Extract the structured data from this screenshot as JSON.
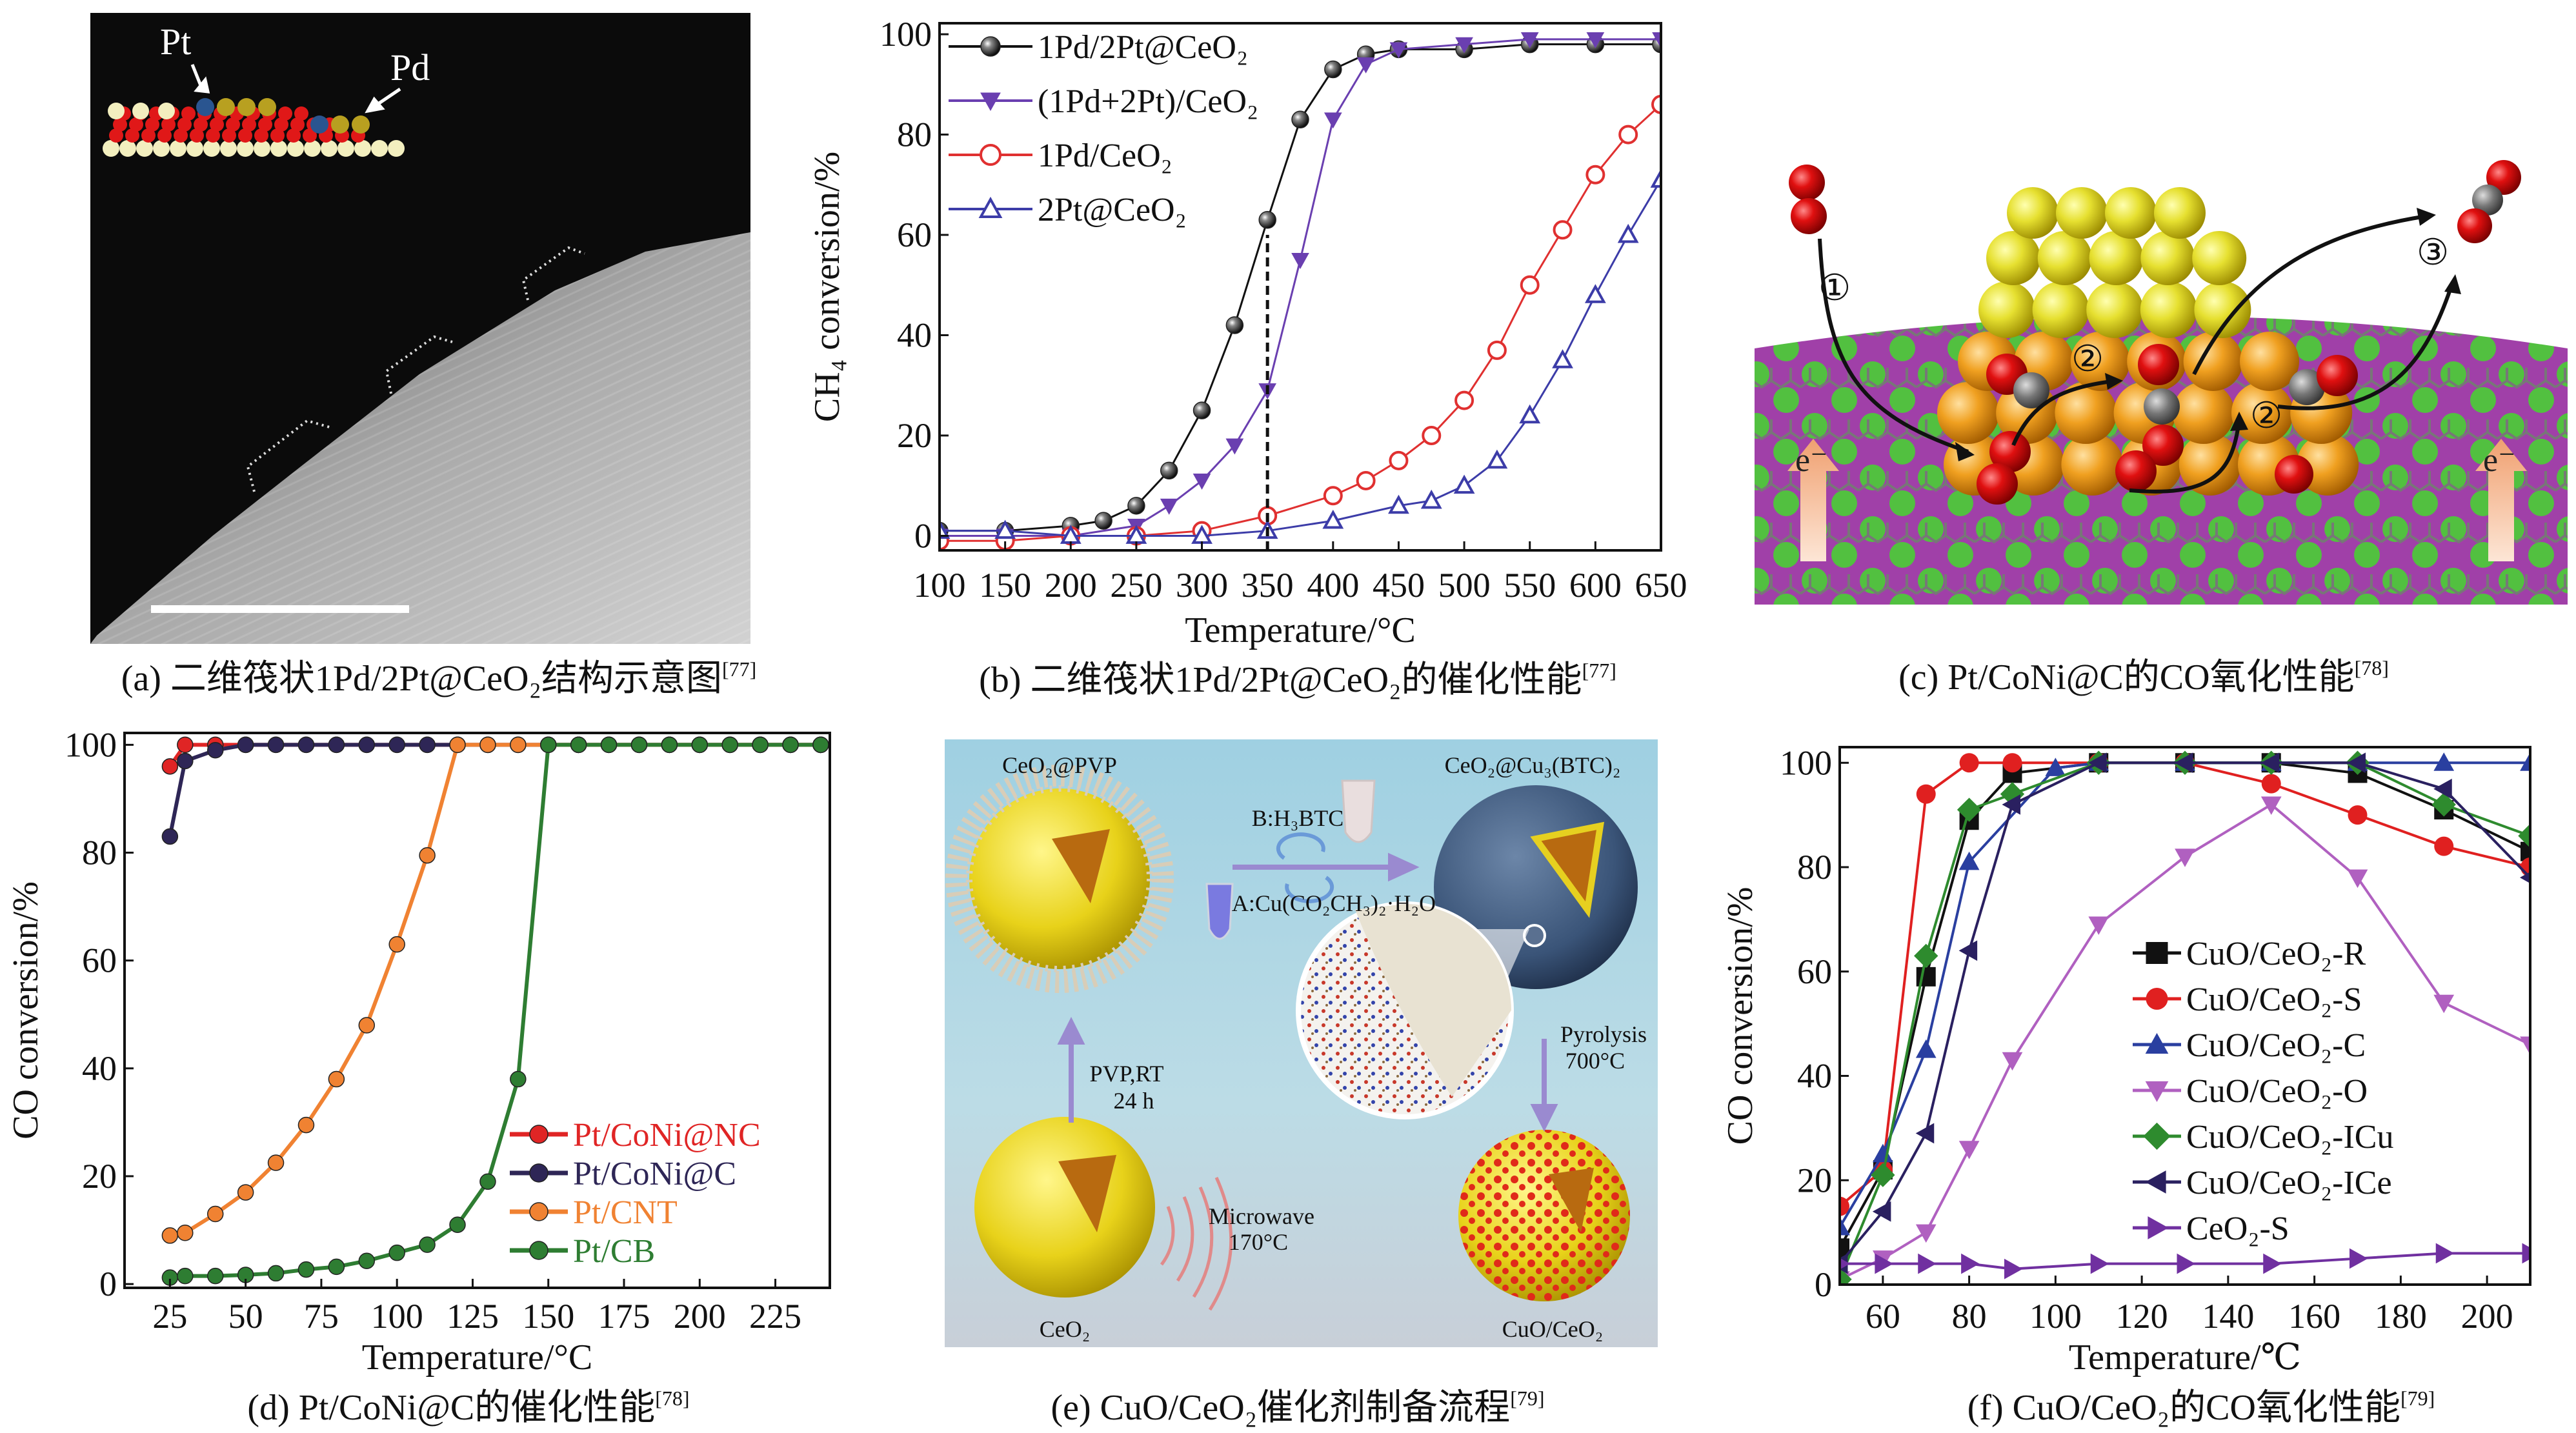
{
  "panels": {
    "a": {
      "caption": "(a) 二维筏状1Pd/2Pt@CeO₂结构示意图",
      "ref": "[77]",
      "labels": {
        "pt": "Pt",
        "pd": "Pd"
      }
    },
    "b": {
      "caption": "(b) 二维筏状1Pd/2Pt@CeO₂的催化性能",
      "ref": "[77]"
    },
    "c": {
      "caption": "(c) Pt/CoNi@C的CO氧化性能",
      "ref": "[78]",
      "labels": {
        "step1": "①",
        "step2a": "②",
        "step2b": "②",
        "step3": "③",
        "e_left": "e⁻",
        "e_right": "e⁻"
      }
    },
    "d": {
      "caption": "(d) Pt/CoNi@C的催化性能",
      "ref": "[78]"
    },
    "e": {
      "caption": "(e) CuO/CeO₂催化剂制备流程",
      "ref": "[79]",
      "labels": {
        "ceo2_pvp": "CeO₂@PVP",
        "ceo2_cubtc": "CeO₂@Cu₃(BTC)₂",
        "reagent_b": "B:H₃BTC",
        "reagent_a": "A:Cu(CO₂CH₃)₂·H₂O",
        "pvp_rt": "PVP,RT",
        "time_24h": "24 h",
        "microwave": "Microwave",
        "temp_170": "170°C",
        "pyrolysis": "Pyrolysis",
        "temp_700": "700°C",
        "ceo2": "CeO₂",
        "cuo_ceo2": "CuO/CeO₂"
      }
    },
    "f": {
      "caption": "(f) CuO/CeO₂的CO氧化性能",
      "ref": "[79]"
    }
  },
  "chart_data": [
    {
      "id": "b",
      "type": "line",
      "title": "",
      "xlabel": "Temperature/°C",
      "ylabel": "CH₄ conversion/%",
      "xlim": [
        100,
        650
      ],
      "ylim": [
        -2.9,
        102.2
      ],
      "xticks": [
        100,
        150,
        200,
        250,
        300,
        350,
        400,
        450,
        500,
        550,
        600,
        650
      ],
      "yticks": [
        0,
        20,
        40,
        60,
        80,
        100
      ],
      "grid": false,
      "legend_position": "top-left",
      "annotation": "dashed vertical line at 350 °C",
      "series": [
        {
          "name": "1Pd/2Pt@CeO₂",
          "color": "#111111",
          "marker": "ball",
          "x": [
            100,
            150,
            200,
            225,
            250,
            275,
            300,
            325,
            350,
            375,
            400,
            425,
            450,
            500,
            550,
            600,
            650
          ],
          "y": [
            1,
            1,
            2,
            3,
            6,
            13,
            25,
            42,
            63,
            83,
            93,
            96,
            97,
            97,
            98,
            98,
            98
          ]
        },
        {
          "name": "(1Pd+2Pt)/CeO₂",
          "color": "#6a3fb0",
          "marker": "tri-down",
          "x": [
            100,
            150,
            200,
            250,
            275,
            300,
            325,
            350,
            375,
            400,
            425,
            450,
            500,
            550,
            600,
            650
          ],
          "y": [
            0,
            0,
            0,
            2,
            6,
            11,
            18,
            29,
            55,
            83,
            94,
            97,
            98,
            99,
            99,
            99
          ]
        },
        {
          "name": "1Pd/CeO₂",
          "color": "#e03030",
          "marker": "circle-open",
          "x": [
            100,
            150,
            200,
            250,
            300,
            350,
            400,
            425,
            450,
            475,
            500,
            525,
            550,
            575,
            600,
            625,
            650
          ],
          "y": [
            -1,
            -1,
            0,
            0,
            1,
            4,
            8,
            11,
            15,
            20,
            27,
            37,
            50,
            61,
            72,
            80,
            86
          ]
        },
        {
          "name": "2Pt@CeO₂",
          "color": "#3c3ca8",
          "marker": "tri-up-open",
          "x": [
            100,
            150,
            200,
            250,
            300,
            350,
            400,
            450,
            475,
            500,
            525,
            550,
            575,
            600,
            625,
            650
          ],
          "y": [
            1,
            1,
            0,
            0,
            0,
            1,
            3,
            6,
            7,
            10,
            15,
            24,
            35,
            48,
            60,
            71
          ]
        }
      ]
    },
    {
      "id": "d",
      "type": "line",
      "title": "",
      "xlabel": "Temperature/°C",
      "ylabel": "CO conversion/%",
      "xlim": [
        10,
        243
      ],
      "ylim": [
        -0.7,
        102.2
      ],
      "xticks": [
        25,
        50,
        75,
        100,
        125,
        150,
        175,
        200,
        225
      ],
      "yticks": [
        0,
        20,
        40,
        60,
        80,
        100
      ],
      "grid": false,
      "legend_position": "bottom-right",
      "series": [
        {
          "name": "Pt/CoNi@NC",
          "color": "#e02525",
          "marker": "ball",
          "x": [
            25,
            30,
            40,
            50,
            60,
            70,
            80,
            90,
            100,
            110,
            120,
            130,
            140,
            150,
            160,
            170,
            180,
            190,
            200,
            210,
            220,
            230,
            240
          ],
          "y": [
            96,
            100,
            100,
            100,
            100,
            100,
            100,
            100,
            100,
            100,
            100,
            100,
            100,
            100,
            100,
            100,
            100,
            100,
            100,
            100,
            100,
            100,
            100
          ]
        },
        {
          "name": "Pt/CoNi@C",
          "color": "#2e2656",
          "marker": "ball",
          "x": [
            25,
            30,
            40,
            50,
            60,
            70,
            80,
            90,
            100,
            110,
            120,
            130,
            140,
            150,
            160,
            170,
            180,
            190,
            200,
            210,
            220,
            230,
            240
          ],
          "y": [
            83,
            97,
            99,
            100,
            100,
            100,
            100,
            100,
            100,
            100,
            100,
            100,
            100,
            100,
            100,
            100,
            100,
            100,
            100,
            100,
            100,
            100,
            100
          ]
        },
        {
          "name": "Pt/CNT",
          "color": "#f08232",
          "marker": "ball",
          "x": [
            25,
            30,
            40,
            50,
            60,
            70,
            80,
            90,
            100,
            110,
            120,
            130,
            140,
            150,
            160,
            170,
            180,
            190,
            200,
            210,
            220,
            230,
            240
          ],
          "y": [
            9,
            9.5,
            13,
            17,
            22.5,
            29.5,
            38,
            48,
            63,
            79.5,
            100,
            100,
            100,
            100,
            100,
            100,
            100,
            100,
            100,
            100,
            100,
            100,
            100
          ]
        },
        {
          "name": "Pt/CB",
          "color": "#2e7d32",
          "marker": "ball",
          "x": [
            25,
            30,
            40,
            50,
            60,
            70,
            80,
            90,
            100,
            110,
            120,
            130,
            140,
            150,
            160,
            170,
            180,
            190,
            200,
            210,
            220,
            230,
            240
          ],
          "y": [
            1.2,
            1.5,
            1.5,
            1.7,
            2,
            2.7,
            3.2,
            4.3,
            5.8,
            7.3,
            11,
            19,
            38,
            100,
            100,
            100,
            100,
            100,
            100,
            100,
            100,
            100,
            100
          ]
        }
      ]
    },
    {
      "id": "f",
      "type": "line",
      "title": "",
      "xlabel": "Temperature/℃",
      "ylabel": "CO conversion/%",
      "xlim": [
        50,
        210
      ],
      "ylim": [
        0,
        103
      ],
      "xticks": [
        60,
        80,
        100,
        120,
        140,
        160,
        180,
        200
      ],
      "yticks": [
        0,
        20,
        40,
        60,
        80,
        100
      ],
      "grid": false,
      "legend_position": "center-right",
      "series": [
        {
          "name": "CuO/CeO₂-R",
          "color": "#111111",
          "marker": "square",
          "x": [
            50,
            60,
            70,
            80,
            90,
            110,
            130,
            150,
            170,
            190,
            210
          ],
          "y": [
            7,
            22,
            59,
            89,
            98,
            100,
            100,
            100,
            98,
            91,
            83
          ]
        },
        {
          "name": "CuO/CeO₂-S",
          "color": "#e02020",
          "marker": "circle",
          "x": [
            50,
            60,
            70,
            80,
            90,
            110,
            130,
            150,
            170,
            190,
            210
          ],
          "y": [
            15,
            22,
            94,
            100,
            100,
            100,
            100,
            96,
            90,
            84,
            80
          ]
        },
        {
          "name": "CuO/CeO₂-C",
          "color": "#2a3fa0",
          "marker": "tri-up",
          "x": [
            50,
            60,
            70,
            80,
            100,
            110,
            130,
            150,
            170,
            190,
            210
          ],
          "y": [
            11,
            25,
            45,
            81,
            99,
            100,
            100,
            100,
            100,
            100,
            100
          ]
        },
        {
          "name": "CuO/CeO₂-O",
          "color": "#b060c0",
          "marker": "tri-down",
          "x": [
            50,
            60,
            70,
            80,
            90,
            110,
            130,
            150,
            170,
            190,
            210
          ],
          "y": [
            1,
            5,
            10,
            26,
            43,
            69,
            82,
            92,
            78,
            54,
            46
          ]
        },
        {
          "name": "CuO/CeO₂-ICu",
          "color": "#2e8b2e",
          "marker": "diamond",
          "x": [
            50,
            60,
            70,
            80,
            90,
            110,
            130,
            150,
            170,
            190,
            210
          ],
          "y": [
            1,
            21,
            63,
            91,
            94,
            100,
            100,
            100,
            100,
            92,
            86
          ]
        },
        {
          "name": "CuO/CeO₂-ICe",
          "color": "#2a2060",
          "marker": "tri-left",
          "x": [
            50,
            60,
            70,
            80,
            90,
            110,
            130,
            150,
            170,
            190,
            210
          ],
          "y": [
            4,
            14,
            29,
            64,
            92,
            100,
            100,
            100,
            100,
            95,
            78
          ]
        },
        {
          "name": "CeO₂-S",
          "color": "#7030a0",
          "marker": "tri-right",
          "x": [
            50,
            60,
            70,
            80,
            90,
            110,
            130,
            150,
            170,
            190,
            210
          ],
          "y": [
            4,
            4,
            4,
            4,
            3,
            4,
            4,
            4,
            5,
            6,
            6
          ]
        }
      ]
    }
  ]
}
